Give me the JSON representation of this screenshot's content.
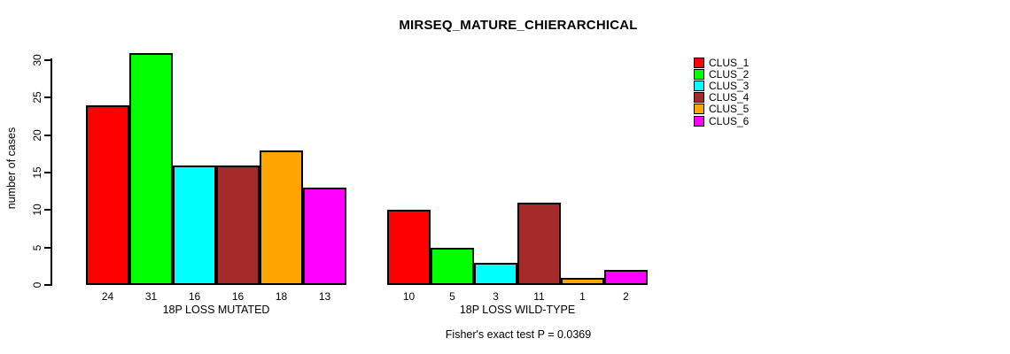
{
  "chart_data": {
    "type": "bar",
    "title": "MIRSEQ_MATURE_CHIERARCHICAL",
    "ylabel": "number of cases",
    "xlabel": "",
    "ylim": [
      0,
      30
    ],
    "yticks": [
      0,
      5,
      10,
      15,
      20,
      25,
      30
    ],
    "grid": false,
    "legend_position": "top-right",
    "categories": [
      "18P LOSS MUTATED",
      "18P LOSS WILD-TYPE"
    ],
    "series": [
      {
        "name": "CLUS_1",
        "color": "#FF0000",
        "values": [
          24,
          10
        ]
      },
      {
        "name": "CLUS_2",
        "color": "#00FF00",
        "values": [
          31,
          5
        ]
      },
      {
        "name": "CLUS_3",
        "color": "#00FFFF",
        "values": [
          16,
          3
        ]
      },
      {
        "name": "CLUS_4",
        "color": "#A52A2A",
        "values": [
          16,
          11
        ]
      },
      {
        "name": "CLUS_5",
        "color": "#FFA500",
        "values": [
          18,
          1
        ]
      },
      {
        "name": "CLUS_6",
        "color": "#FF00FF",
        "values": [
          13,
          2
        ]
      }
    ],
    "bar_value_labels": [
      [
        "24",
        "31",
        "16",
        "16",
        "18",
        "13"
      ],
      [
        "10",
        "5",
        "3",
        "11",
        "1",
        "2"
      ]
    ],
    "annotation": "Fisher's exact test P = 0.0369"
  }
}
